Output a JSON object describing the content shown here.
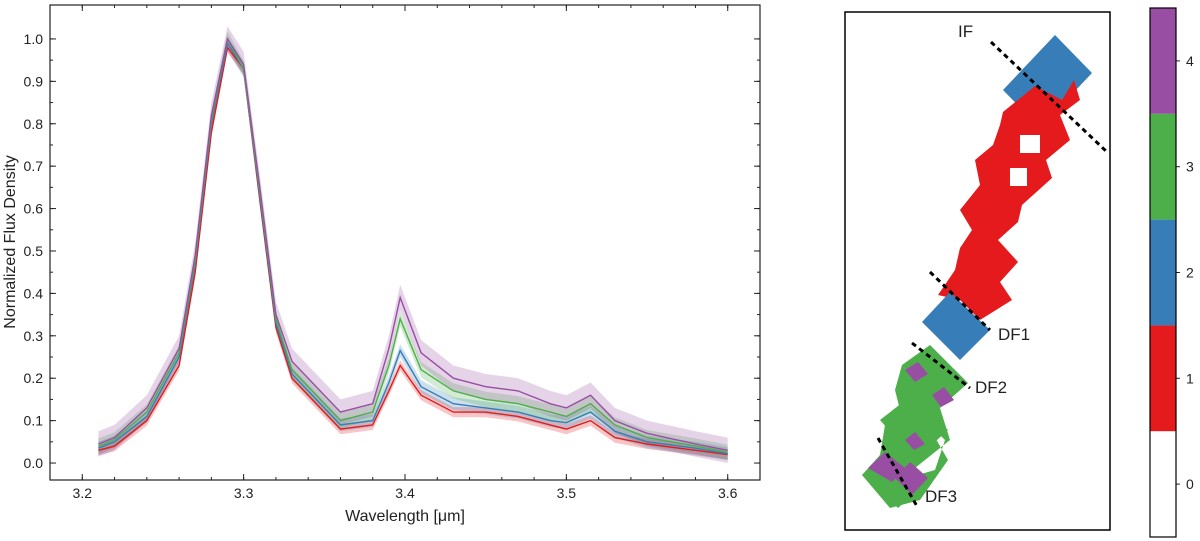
{
  "chart_data": [
    {
      "type": "line",
      "xlabel": "Wavelength [μm]",
      "ylabel": "Normalized Flux Density",
      "xlim": [
        3.18,
        3.62
      ],
      "ylim": [
        -0.04,
        1.08
      ],
      "xticks": [
        3.2,
        3.3,
        3.4,
        3.5,
        3.6
      ],
      "xtick_labels": [
        "3.2",
        "3.3",
        "3.4",
        "3.5",
        "3.6"
      ],
      "yticks": [
        0.0,
        0.1,
        0.2,
        0.3,
        0.4,
        0.5,
        0.6,
        0.7,
        0.8,
        0.9,
        1.0
      ],
      "ytick_labels": [
        "0.0",
        "0.1",
        "0.2",
        "0.3",
        "0.4",
        "0.5",
        "0.6",
        "0.7",
        "0.8",
        "0.9",
        "1.0"
      ],
      "grid": false,
      "x": [
        3.21,
        3.22,
        3.24,
        3.26,
        3.27,
        3.28,
        3.29,
        3.3,
        3.31,
        3.32,
        3.33,
        3.35,
        3.36,
        3.38,
        3.39,
        3.397,
        3.41,
        3.43,
        3.45,
        3.47,
        3.49,
        3.5,
        3.515,
        3.53,
        3.55,
        3.58,
        3.6
      ],
      "series": [
        {
          "color": "#e41a1c",
          "values": [
            0.03,
            0.04,
            0.1,
            0.23,
            0.45,
            0.78,
            0.98,
            0.93,
            0.62,
            0.32,
            0.2,
            0.12,
            0.08,
            0.09,
            0.17,
            0.23,
            0.16,
            0.12,
            0.12,
            0.11,
            0.09,
            0.08,
            0.1,
            0.06,
            0.045,
            0.03,
            0.02
          ],
          "band": 0.012
        },
        {
          "color": "#377eb8",
          "values": [
            0.035,
            0.05,
            0.11,
            0.25,
            0.47,
            0.8,
            0.99,
            0.93,
            0.63,
            0.33,
            0.21,
            0.13,
            0.09,
            0.1,
            0.19,
            0.265,
            0.18,
            0.14,
            0.13,
            0.12,
            0.1,
            0.095,
            0.12,
            0.075,
            0.05,
            0.035,
            0.022
          ],
          "band": 0.015
        },
        {
          "color": "#4daf4a",
          "values": [
            0.04,
            0.055,
            0.12,
            0.26,
            0.48,
            0.81,
            1.0,
            0.93,
            0.64,
            0.34,
            0.22,
            0.14,
            0.1,
            0.12,
            0.23,
            0.34,
            0.22,
            0.17,
            0.15,
            0.14,
            0.12,
            0.11,
            0.14,
            0.09,
            0.06,
            0.04,
            0.025
          ],
          "band": 0.018
        },
        {
          "color": "#984ea3",
          "values": [
            0.045,
            0.06,
            0.13,
            0.27,
            0.49,
            0.82,
            1.0,
            0.94,
            0.65,
            0.35,
            0.24,
            0.16,
            0.12,
            0.14,
            0.27,
            0.39,
            0.26,
            0.2,
            0.18,
            0.17,
            0.14,
            0.13,
            0.16,
            0.1,
            0.07,
            0.045,
            0.03
          ],
          "band": 0.03
        }
      ]
    },
    {
      "type": "heatmap",
      "description_values": "categorical region map",
      "annotations": [
        {
          "label": "IF"
        },
        {
          "label": "DF1"
        },
        {
          "label": "DF2"
        },
        {
          "label": "DF3"
        }
      ],
      "colorbar": {
        "labels": [
          "0",
          "1",
          "2",
          "3",
          "4"
        ],
        "colors": [
          "#ffffff",
          "#e41a1c",
          "#377eb8",
          "#4daf4a",
          "#984ea3"
        ]
      }
    }
  ]
}
